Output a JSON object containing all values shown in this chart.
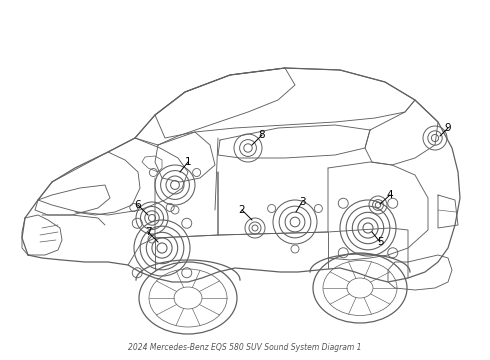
{
  "title": "2024 Mercedes-Benz EQS 580 SUV Sound System Diagram 1",
  "bg_color": "#ffffff",
  "line_color": "#606060",
  "label_color": "#000000",
  "figsize": [
    4.9,
    3.6
  ],
  "dpi": 100
}
